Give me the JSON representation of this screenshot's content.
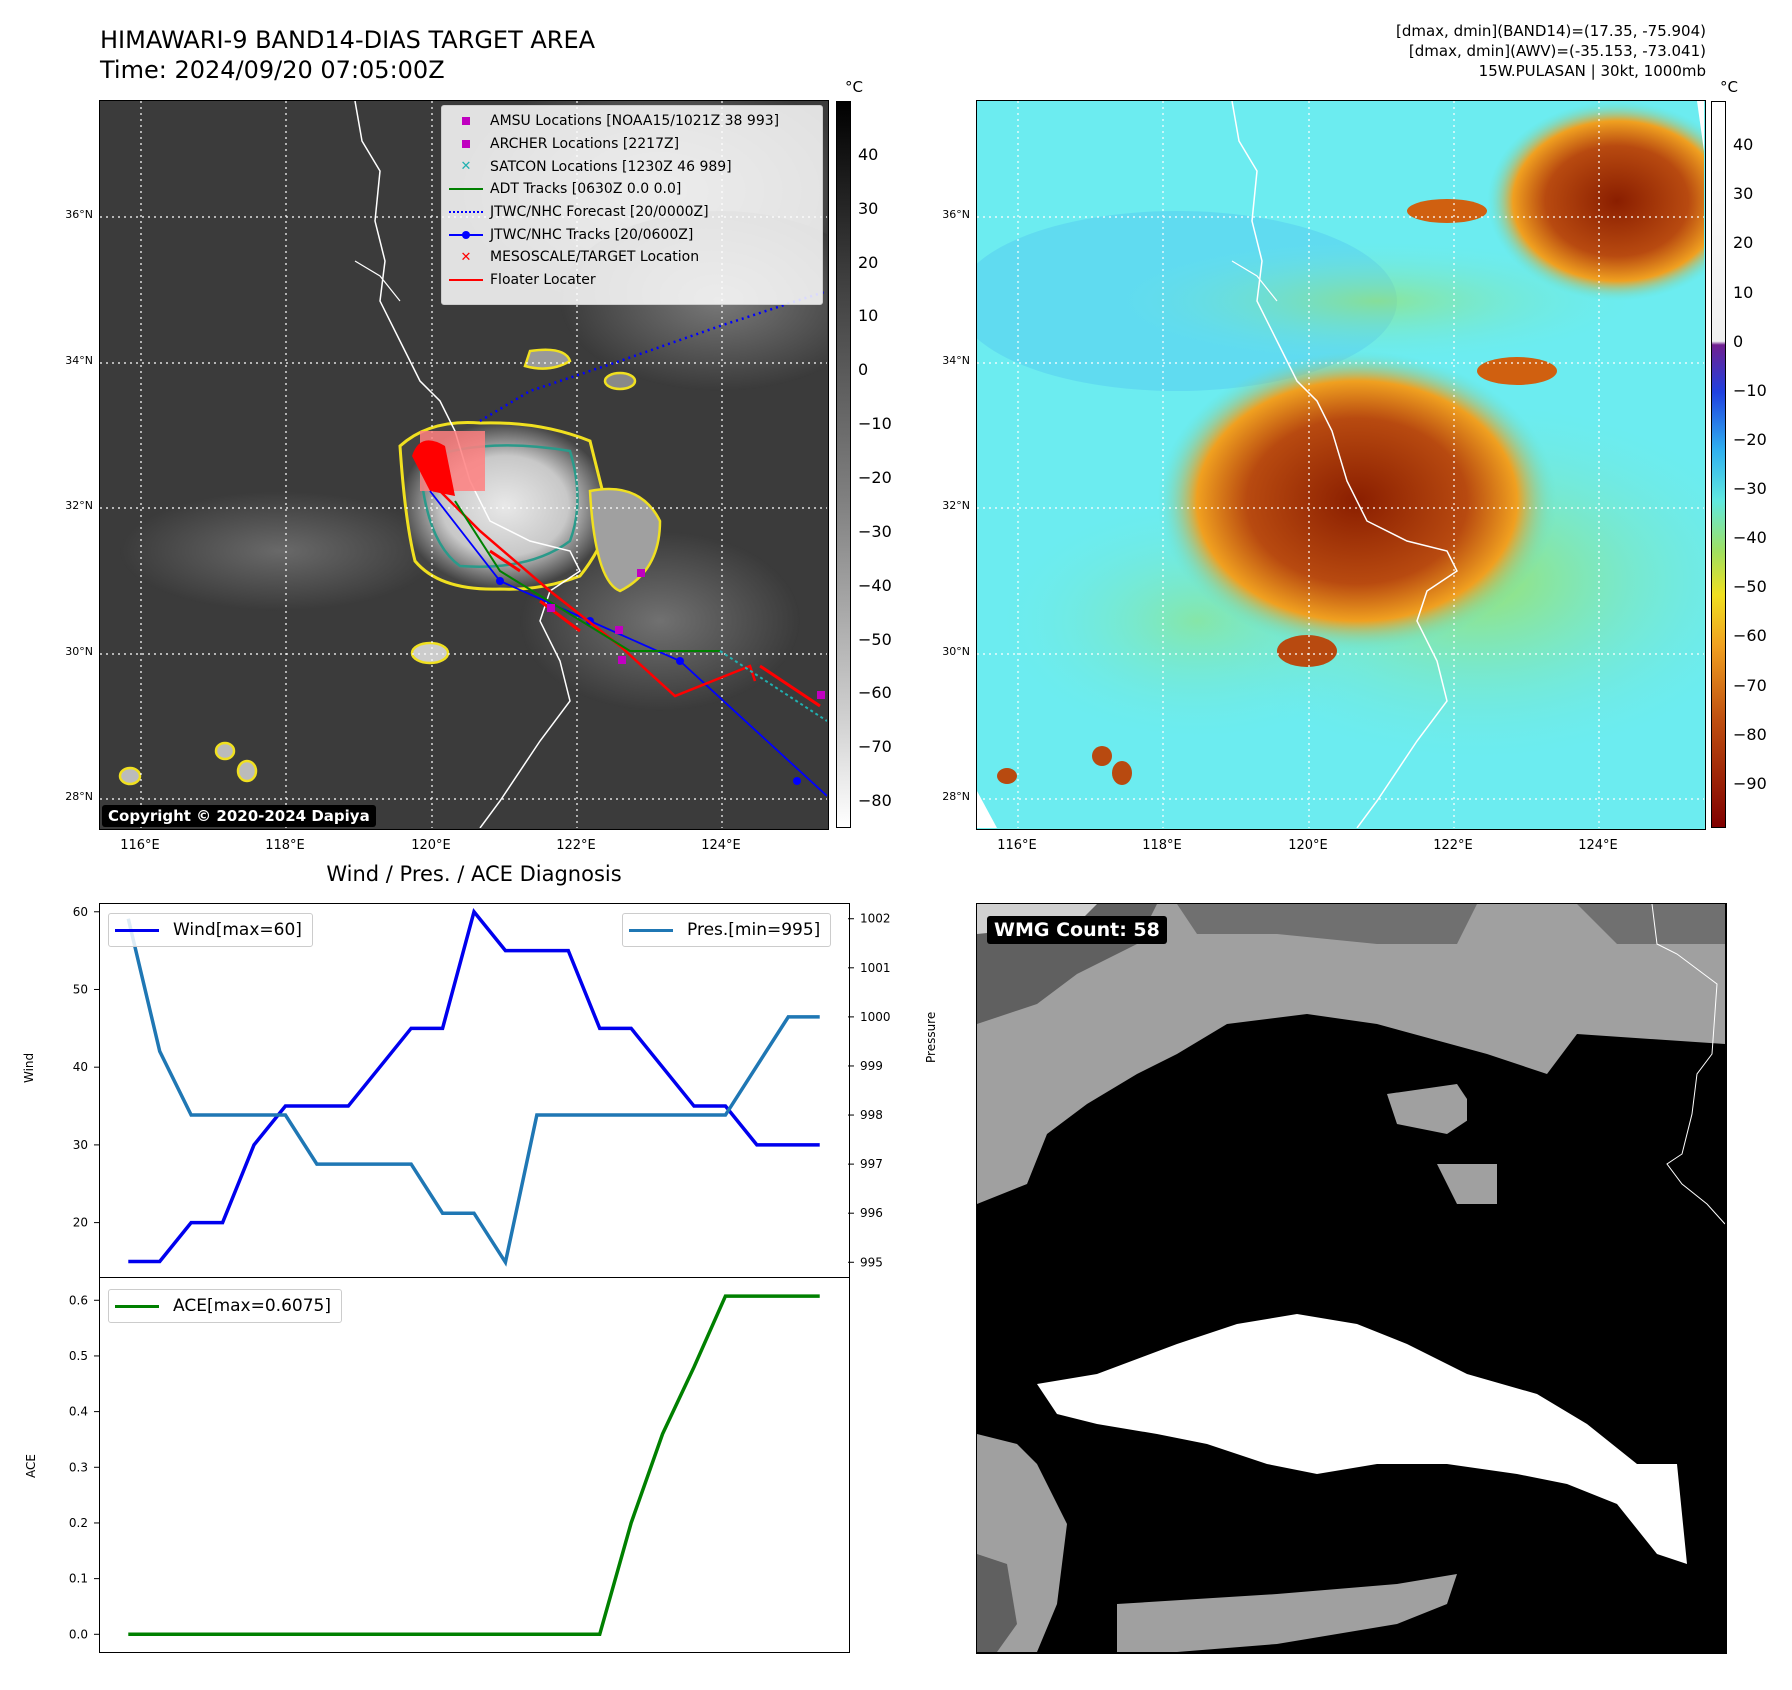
{
  "header": {
    "title_line1": "HIMAWARI-9 BAND14-DIAS TARGET AREA",
    "title_line2": "Time: 2024/09/20 07:05:00Z",
    "info_line1": "[dmax, dmin](BAND14)=(17.35, -75.904)",
    "info_line2": "[dmax, dmin](AWV)=(-35.153, -73.041)",
    "info_line3": "15W.PULASAN | 30kt, 1000mb"
  },
  "map": {
    "lon_ticks": [
      "116°E",
      "118°E",
      "120°E",
      "122°E",
      "124°E"
    ],
    "lat_ticks": [
      "36°N",
      "34°N",
      "32°N",
      "30°N",
      "28°N"
    ],
    "copyright": "Copyright © 2020-2024 Dapiya",
    "colorbar_unit": "°C",
    "ir_colorbar_ticks": [
      "40",
      "30",
      "20",
      "10",
      "0",
      "−10",
      "−20",
      "−30",
      "−40",
      "−50",
      "−60",
      "−70",
      "−80"
    ],
    "color_colorbar_ticks": [
      "40",
      "30",
      "20",
      "10",
      "0",
      "−10",
      "−20",
      "−30",
      "−40",
      "−50",
      "−60",
      "−70",
      "−80",
      "−90"
    ],
    "legend": [
      {
        "label": "AMSU Locations [NOAA15/1021Z 38 993]",
        "symbol": "square",
        "color": "#c000c0"
      },
      {
        "label": "ARCHER Locations [2217Z]",
        "symbol": "square",
        "color": "#c000c0"
      },
      {
        "label": "SATCON Locations [1230Z 46 989]",
        "symbol": "x",
        "color": "#20b0b0"
      },
      {
        "label": "ADT Tracks [0630Z 0.0 0.0]",
        "symbol": "line",
        "color": "#008000"
      },
      {
        "label": "JTWC/NHC Forecast [20/0000Z]",
        "symbol": "dotted",
        "color": "#0000ff"
      },
      {
        "label": "JTWC/NHC Tracks [20/0600Z]",
        "symbol": "line-dot",
        "color": "#0000ff"
      },
      {
        "label": "MESOSCALE/TARGET Location",
        "symbol": "x",
        "color": "#ff0000"
      },
      {
        "label": "Floater Locater",
        "symbol": "line",
        "color": "#ff0000"
      }
    ]
  },
  "diagnosis": {
    "title": "Wind / Pres. / ACE Diagnosis",
    "wind_label": "Wind",
    "pressure_label": "Pressure",
    "ace_label": "ACE",
    "wind_legend": "Wind[max=60]",
    "pres_legend": "Pres.[min=995]",
    "ace_legend": "ACE[max=0.6075]"
  },
  "wmg": {
    "badge": "WMG Count: 58"
  },
  "colors": {
    "wind": "#0000ee",
    "pressure": "#1f77b4",
    "ace": "#008000"
  },
  "chart_data": [
    {
      "type": "line",
      "title": "Wind / Pres. / ACE Diagnosis",
      "x": [
        0,
        1,
        2,
        3,
        4,
        5,
        6,
        7,
        8,
        9,
        10,
        11,
        12,
        13,
        14,
        15,
        16,
        17,
        18,
        19,
        20,
        21,
        22
      ],
      "series": [
        {
          "name": "Wind[max=60]",
          "axis": "left",
          "values": [
            15,
            15,
            20,
            20,
            30,
            35,
            35,
            35,
            40,
            45,
            45,
            60,
            55,
            55,
            55,
            45,
            45,
            40,
            35,
            35,
            30,
            30,
            30
          ]
        },
        {
          "name": "Pres.[min=995]",
          "axis": "right",
          "values": [
            1002,
            999.3,
            998,
            998,
            998,
            998,
            997,
            997,
            997,
            997,
            996,
            996,
            995,
            998,
            998,
            998,
            998,
            998,
            998,
            998,
            999,
            1000,
            1000
          ]
        }
      ],
      "ylabel": "Wind",
      "ylabel_right": "Pressure",
      "y_ticks": [
        20,
        30,
        40,
        50,
        60
      ],
      "y2_ticks": [
        995,
        996,
        997,
        998,
        999,
        1000,
        1001,
        1002
      ],
      "ylim": [
        13,
        61
      ],
      "y2lim": [
        994.7,
        1002.3
      ]
    },
    {
      "type": "line",
      "x": [
        0,
        1,
        2,
        3,
        4,
        5,
        6,
        7,
        8,
        9,
        10,
        11,
        12,
        13,
        14,
        15,
        16,
        17,
        18,
        19,
        20,
        21,
        22
      ],
      "series": [
        {
          "name": "ACE[max=0.6075]",
          "values": [
            0,
            0,
            0,
            0,
            0,
            0,
            0,
            0,
            0,
            0,
            0,
            0,
            0,
            0,
            0,
            0,
            0.2,
            0.36,
            0.48,
            0.6075,
            0.6075,
            0.6075,
            0.6075
          ]
        }
      ],
      "ylabel": "ACE",
      "y_ticks": [
        0.0,
        0.1,
        0.2,
        0.3,
        0.4,
        0.5,
        0.6
      ],
      "ylim": [
        -0.03,
        0.64
      ]
    }
  ]
}
